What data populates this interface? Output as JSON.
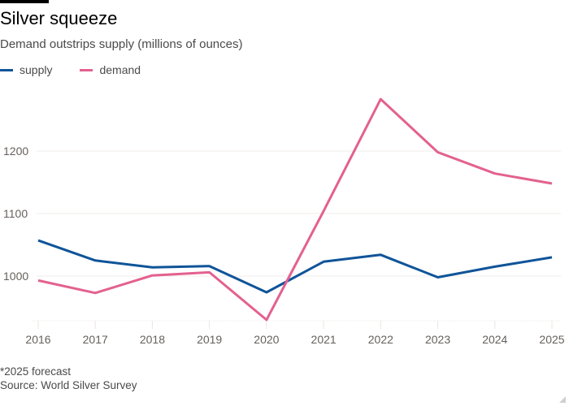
{
  "header": {
    "title": "Silver squeeze",
    "subtitle": "Demand outstrips supply (millions of ounces)"
  },
  "legend": [
    {
      "label": "supply",
      "color": "#0f5499"
    },
    {
      "label": "demand",
      "color": "#e3618f"
    }
  ],
  "footer": {
    "note": "*2025 forecast",
    "source": "Source: World Silver Survey"
  },
  "chart_data": {
    "type": "line",
    "title": "Silver squeeze",
    "subtitle": "Demand outstrips supply (millions of ounces)",
    "xlabel": "",
    "ylabel": "",
    "x": [
      "2016",
      "2017",
      "2018",
      "2019",
      "2020",
      "2021",
      "2022",
      "2023",
      "2024",
      "2025"
    ],
    "yticks": [
      1000,
      1100,
      1200
    ],
    "ylim": [
      925,
      1300
    ],
    "grid": true,
    "legend_position": "top-left",
    "series": [
      {
        "name": "supply",
        "color": "#0f5499",
        "values": [
          1057,
          1025,
          1014,
          1016,
          974,
          1023,
          1034,
          998,
          1015,
          1030
        ]
      },
      {
        "name": "demand",
        "color": "#e3618f",
        "values": [
          993,
          973,
          1001,
          1006,
          930,
          1104,
          1283,
          1198,
          1164,
          1148
        ]
      }
    ]
  }
}
